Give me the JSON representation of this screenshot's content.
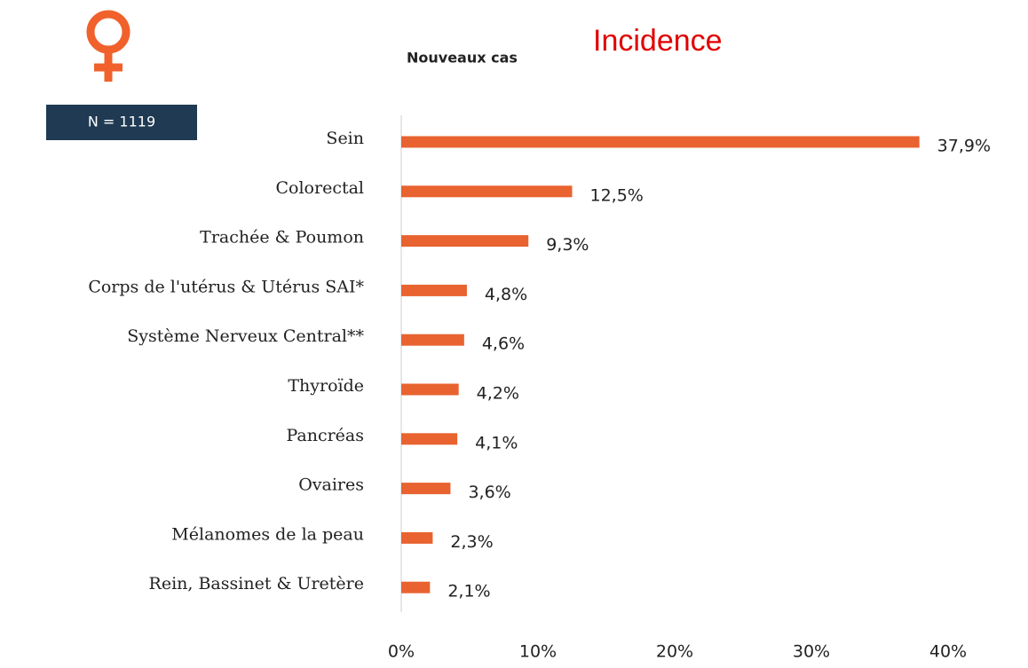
{
  "chart_data": {
    "type": "barh",
    "title": "Incidence",
    "subtitle": "Nouveaux cas",
    "annotation": "N = 1119",
    "categories": [
      "Sein",
      "Colorectal",
      "Trachée & Poumon",
      "Corps de l'utérus & Utérus SAI*",
      "Système Nerveux Central**",
      "Thyroïde",
      "Pancréas",
      "Ovaires",
      "Mélanomes de la peau",
      "Rein, Bassinet & Uretère"
    ],
    "values": [
      37.9,
      12.5,
      9.3,
      4.8,
      4.6,
      4.2,
      4.1,
      3.6,
      2.3,
      2.1
    ],
    "value_labels": [
      "37,9%",
      "12,5%",
      "9,3%",
      "4,8%",
      "4,6%",
      "4,2%",
      "4,1%",
      "3,6%",
      "2,3%",
      "2,1%"
    ],
    "color": "#e8632f",
    "xlim": [
      0,
      40
    ],
    "xticks": [
      {
        "value": 0,
        "label": "0%"
      },
      {
        "value": 10,
        "label": "10%"
      },
      {
        "value": 20,
        "label": "20%"
      },
      {
        "value": 30,
        "label": "30%"
      },
      {
        "value": 40,
        "label": "40%"
      }
    ]
  }
}
